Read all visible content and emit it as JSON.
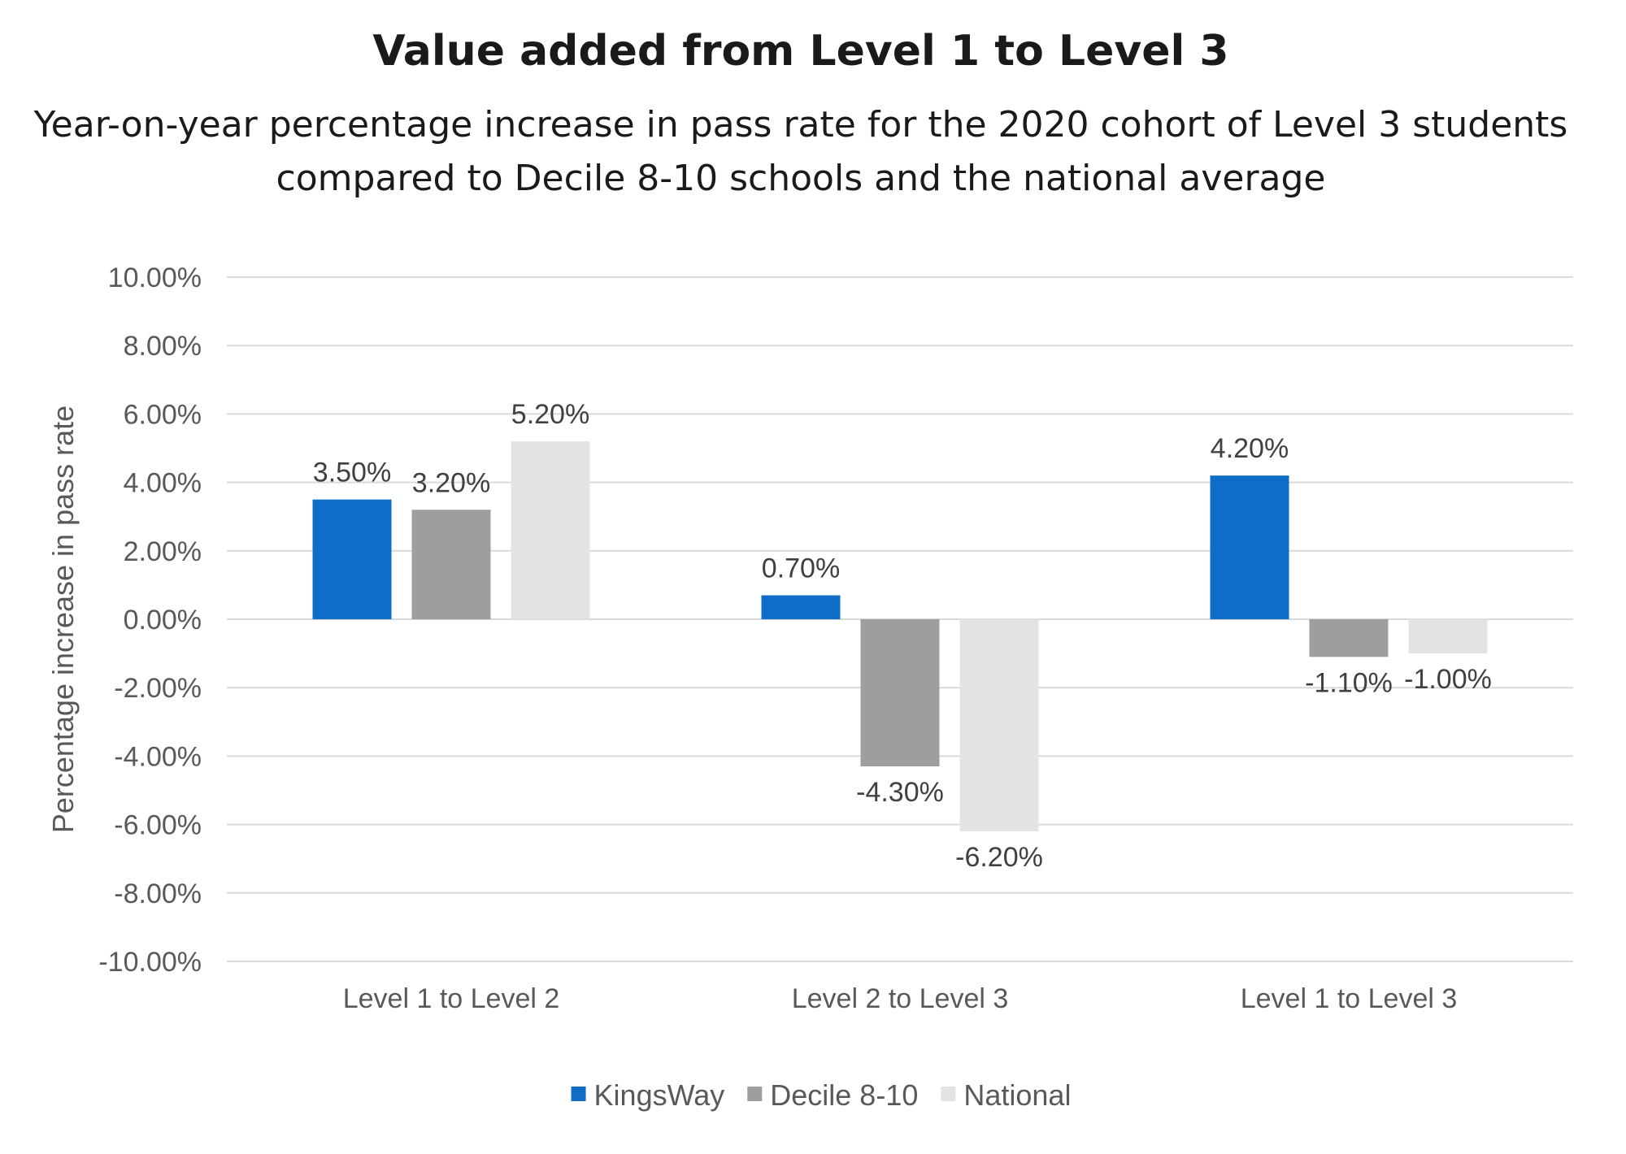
{
  "chart_data": {
    "type": "bar",
    "title": "Value added from Level 1 to Level 3",
    "subtitle_lines": [
      "Year-on-year percentage increase in pass rate for the 2020 cohort of Level 3 students",
      "compared to Decile 8-10 schools and the national average"
    ],
    "xlabel": "",
    "ylabel": "Percentage increase in pass rate",
    "ylim": [
      -10,
      10
    ],
    "y_ticks": [
      10,
      8,
      6,
      4,
      2,
      0,
      -2,
      -4,
      -6,
      -8,
      -10
    ],
    "y_tick_labels": [
      "10.00%",
      "8.00%",
      "6.00%",
      "4.00%",
      "2.00%",
      "0.00%",
      "-2.00%",
      "-4.00%",
      "-6.00%",
      "-8.00%",
      "-10.00%"
    ],
    "grid": true,
    "legend_position": "bottom",
    "categories": [
      "Level 1 to Level 2",
      "Level 2 to Level 3",
      "Level 1 to Level 3"
    ],
    "series": [
      {
        "name": "KingsWay",
        "color": "#0f6dc8",
        "values": [
          3.5,
          0.7,
          4.2
        ],
        "labels": [
          "3.50%",
          "0.70%",
          "4.20%"
        ]
      },
      {
        "name": "Decile 8-10",
        "color": "#9e9e9e",
        "values": [
          3.2,
          -4.3,
          -1.1
        ],
        "labels": [
          "3.20%",
          "-4.30%",
          "-1.10%"
        ]
      },
      {
        "name": "National",
        "color": "#e3e3e3",
        "values": [
          5.2,
          -6.2,
          -1.0
        ],
        "labels": [
          "5.20%",
          "-6.20%",
          "-1.00%"
        ]
      }
    ]
  }
}
